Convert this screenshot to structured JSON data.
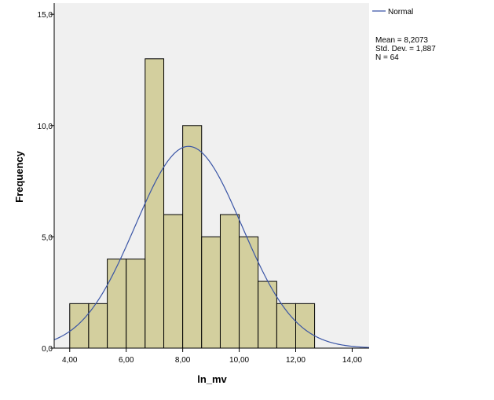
{
  "chart_data": {
    "type": "bar",
    "subtype": "histogram",
    "xlabel": "ln_mv",
    "ylabel": "Frequency",
    "xlim": [
      3.45,
      14.6
    ],
    "ylim": [
      0,
      15.5
    ],
    "x_ticks": [
      {
        "value": 4,
        "label": "4,00"
      },
      {
        "value": 6,
        "label": "6,00"
      },
      {
        "value": 8,
        "label": "8,00"
      },
      {
        "value": 10,
        "label": "10,00"
      },
      {
        "value": 12,
        "label": "12,00"
      },
      {
        "value": 14,
        "label": "14,00"
      }
    ],
    "y_ticks": [
      {
        "value": 0,
        "label": "0,0"
      },
      {
        "value": 5,
        "label": "5,0"
      },
      {
        "value": 10,
        "label": "10,0"
      },
      {
        "value": 15,
        "label": "15,0"
      }
    ],
    "bins": [
      {
        "start": 4.0,
        "end": 4.67,
        "count": 2
      },
      {
        "start": 4.67,
        "end": 5.33,
        "count": 2
      },
      {
        "start": 5.33,
        "end": 6.0,
        "count": 4
      },
      {
        "start": 6.0,
        "end": 6.67,
        "count": 4
      },
      {
        "start": 6.67,
        "end": 7.33,
        "count": 13
      },
      {
        "start": 7.33,
        "end": 8.0,
        "count": 6
      },
      {
        "start": 8.0,
        "end": 8.67,
        "count": 10
      },
      {
        "start": 8.67,
        "end": 9.33,
        "count": 5
      },
      {
        "start": 9.33,
        "end": 10.0,
        "count": 6
      },
      {
        "start": 10.0,
        "end": 10.67,
        "count": 5
      },
      {
        "start": 10.67,
        "end": 11.33,
        "count": 3
      },
      {
        "start": 11.33,
        "end": 12.0,
        "count": 2
      },
      {
        "start": 12.0,
        "end": 12.67,
        "count": 2
      }
    ],
    "normal_curve": {
      "name": "Normal",
      "mean": 8.2073,
      "std_dev": 1.887,
      "n": 64
    },
    "stats_text": [
      "Mean = 8,2073",
      "Std. Dev. = 1,887",
      "N = 64"
    ],
    "legend": {
      "label": "Normal",
      "placement": "top-right"
    },
    "grid": false,
    "colors": {
      "bar_fill": "#d3cf9e",
      "bar_stroke": "#000000",
      "curve": "#3a55a6",
      "plot_bg": "#f0f0f0"
    }
  }
}
